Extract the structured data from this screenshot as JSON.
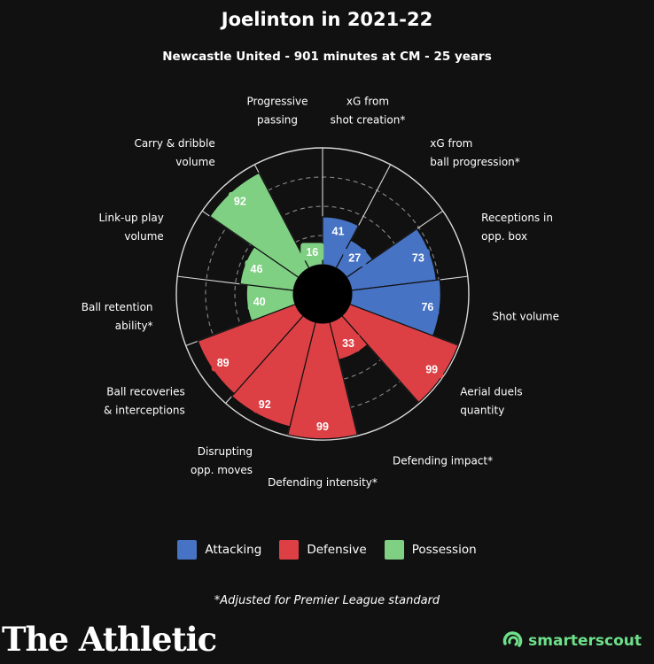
{
  "title": "Joelinton in 2021-22",
  "subtitle": "Newcastle United - 901 minutes at CM -  25 years",
  "colors": {
    "Attacking": "#4773c4",
    "Defensive": "#dc4045",
    "Possession": "#7fd083",
    "background": "#111111",
    "grid": "#d9d9d9"
  },
  "chart_data": {
    "type": "polar-bar",
    "title": "Joelinton in 2021-22",
    "range": [
      0,
      100
    ],
    "categories": [
      {
        "label": [
          "xG from",
          "shot creation*"
        ],
        "value": 41,
        "group": "Attacking"
      },
      {
        "label": [
          "xG from",
          "ball progression*"
        ],
        "value": 27,
        "group": "Attacking"
      },
      {
        "label": [
          "Receptions in",
          "opp. box"
        ],
        "value": 73,
        "group": "Attacking"
      },
      {
        "label": [
          "Shot volume"
        ],
        "value": 76,
        "group": "Attacking"
      },
      {
        "label": [
          "Aerial duels",
          "quantity"
        ],
        "value": 99,
        "group": "Defensive"
      },
      {
        "label": [
          "Defending impact*"
        ],
        "value": 33,
        "group": "Defensive"
      },
      {
        "label": [
          "Defending intensity*"
        ],
        "value": 99,
        "group": "Defensive"
      },
      {
        "label": [
          "Disrupting",
          "opp. moves"
        ],
        "value": 92,
        "group": "Defensive"
      },
      {
        "label": [
          "Ball recoveries",
          "& interceptions"
        ],
        "value": 89,
        "group": "Defensive"
      },
      {
        "label": [
          "Ball retention",
          "ability*"
        ],
        "value": 40,
        "group": "Possession"
      },
      {
        "label": [
          "Link-up play",
          "volume"
        ],
        "value": 46,
        "group": "Possession"
      },
      {
        "label": [
          "Carry & dribble",
          "volume"
        ],
        "value": 92,
        "group": "Possession"
      },
      {
        "label": [
          "Progressive",
          "passing"
        ],
        "value": 16,
        "group": "Possession"
      }
    ],
    "legend": [
      "Attacking",
      "Defensive",
      "Possession"
    ],
    "legend_position": "bottom"
  },
  "legend": {
    "attacking": "Attacking",
    "defensive": "Defensive",
    "possession": "Possession"
  },
  "footnote": "*Adjusted for Premier League standard",
  "brand": "The Athletic",
  "scout_brand": "smarterscout"
}
